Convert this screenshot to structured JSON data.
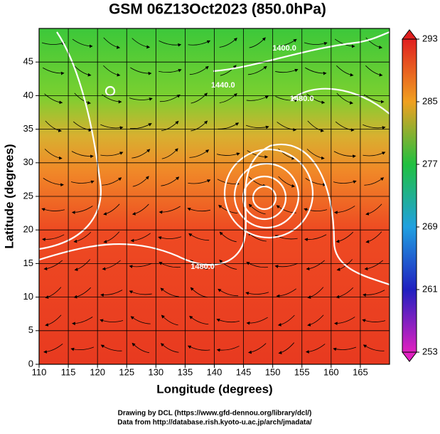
{
  "chart_data": {
    "type": "map",
    "title": "GSM 06Z13Oct2023 (850.0hPa)",
    "xlabel": "Longitude (degrees)",
    "ylabel": "Latitude  (degrees)",
    "xlim": [
      110,
      170
    ],
    "xticks": [
      110,
      115,
      120,
      125,
      130,
      135,
      140,
      145,
      150,
      155,
      160,
      165
    ],
    "ylim": [
      0,
      50
    ],
    "yticks": [
      0,
      5,
      10,
      15,
      20,
      25,
      30,
      35,
      40,
      45
    ],
    "grid": true,
    "colorbar": {
      "lim": [
        253,
        293
      ],
      "ticks": [
        253,
        261,
        269,
        277,
        285,
        293
      ],
      "colors": [
        "#e020c0",
        "#2020c0",
        "#20a0e0",
        "#20c040",
        "#f0a020",
        "#e02020"
      ]
    },
    "contour_labels": [
      {
        "label": "1400.0",
        "lon": 152,
        "lat": 47
      },
      {
        "label": "1440.0",
        "lon": 141.5,
        "lat": 41.5
      },
      {
        "label": "1480.0",
        "lon": 155,
        "lat": 39.5
      },
      {
        "label": "1480.0",
        "lon": 138,
        "lat": 14.5
      }
    ],
    "credits": [
      "Drawing by DCL (https://www.gfd-dennou.org/library/dcl/)",
      "Data from http://database.rish.kyoto-u.ac.jp/arch/jmadata/"
    ]
  }
}
